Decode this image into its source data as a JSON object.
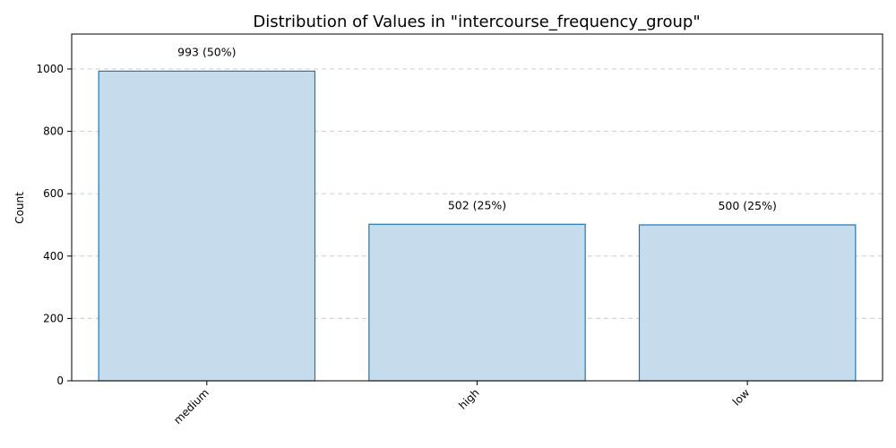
{
  "chart_data": {
    "type": "bar",
    "title": "Distribution of Values in \"intercourse_frequency_group\"",
    "xlabel": "",
    "ylabel": "Count",
    "categories": [
      "medium",
      "high",
      "low"
    ],
    "values": [
      993,
      502,
      500
    ],
    "data_labels": [
      "993 (50%)",
      "502 (25%)",
      "500 (25%)"
    ],
    "ylim": [
      0,
      1112
    ],
    "yticks": [
      0,
      200,
      400,
      600,
      800,
      1000
    ],
    "ytick_labels": [
      "0",
      "200",
      "400",
      "600",
      "800",
      "1000"
    ],
    "grid": "y-dashed",
    "colors": {
      "bar_fill": "#c6dbec",
      "bar_edge": "#1f77b4"
    }
  }
}
